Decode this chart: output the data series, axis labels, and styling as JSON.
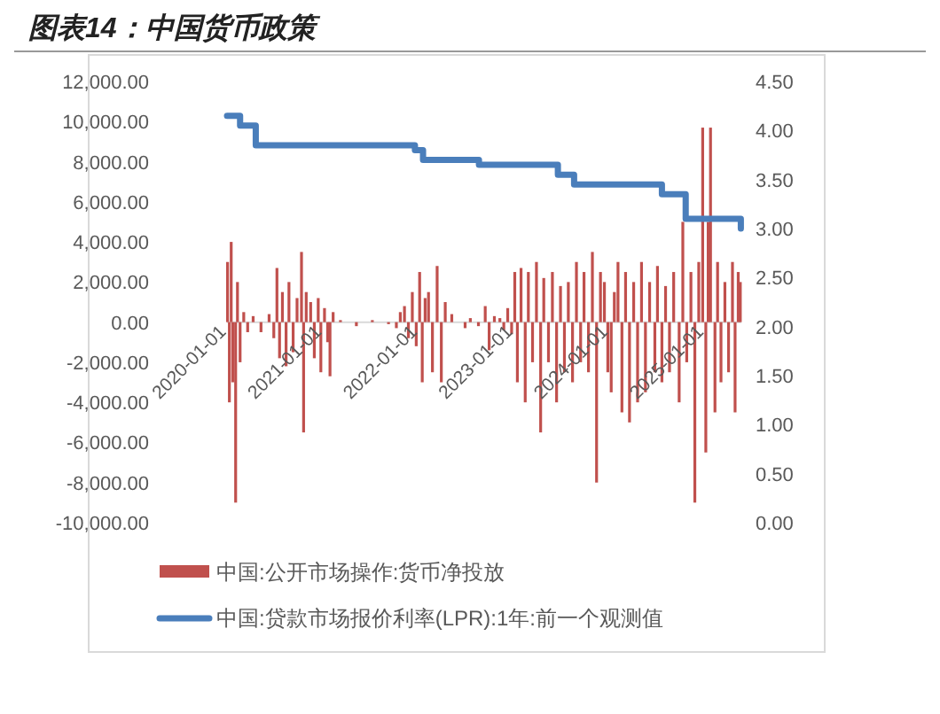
{
  "chart_data": {
    "type": "bar",
    "title": "图表14：中国货币政策",
    "xlim": [
      "2020-01-01",
      "2025-05-22"
    ],
    "xticks": [
      "2020-01-01",
      "2021-01-01",
      "2022-01-01",
      "2023-01-01",
      "2024-01-01",
      "2025-01-01"
    ],
    "ylim": [
      -10000,
      12000
    ],
    "yticks": [
      {
        "value": -10000,
        "label": "-10,000.00"
      },
      {
        "value": -8000,
        "label": "-8,000.00"
      },
      {
        "value": -6000,
        "label": "-6,000.00"
      },
      {
        "value": -4000,
        "label": "-4,000.00"
      },
      {
        "value": -2000,
        "label": "-2,000.00"
      },
      {
        "value": 0,
        "label": "0.00"
      },
      {
        "value": 2000,
        "label": "2,000.00"
      },
      {
        "value": 4000,
        "label": "4,000.00"
      },
      {
        "value": 6000,
        "label": "6,000.00"
      },
      {
        "value": 8000,
        "label": "8,000.00"
      },
      {
        "value": 10000,
        "label": "10,000.00"
      },
      {
        "value": 12000,
        "label": "12,000.00"
      }
    ],
    "y2lim": [
      0,
      4.5
    ],
    "y2ticks": [
      {
        "value": 0,
        "label": "0.00"
      },
      {
        "value": 0.5,
        "label": "0.50"
      },
      {
        "value": 1,
        "label": "1.00"
      },
      {
        "value": 1.5,
        "label": "1.50"
      },
      {
        "value": 2,
        "label": "2.00"
      },
      {
        "value": 2.5,
        "label": "2.50"
      },
      {
        "value": 3,
        "label": "3.00"
      },
      {
        "value": 3.5,
        "label": "3.50"
      },
      {
        "value": 4,
        "label": "4.00"
      },
      {
        "value": 4.5,
        "label": "4.50"
      }
    ],
    "legend": "bottom",
    "series": [
      {
        "name": "中国:公开市场操作:货币净投放",
        "color": "#c0504d",
        "x": [
          "2020-01-03",
          "2020-01-10",
          "2020-01-17",
          "2020-01-23",
          "2020-02-03",
          "2020-02-10",
          "2020-02-20",
          "2020-03-05",
          "2020-03-20",
          "2020-04-10",
          "2020-05-10",
          "2020-06-10",
          "2020-06-28",
          "2020-07-10",
          "2020-07-20",
          "2020-07-31",
          "2020-08-14",
          "2020-08-25",
          "2020-09-10",
          "2020-09-25",
          "2020-10-12",
          "2020-10-20",
          "2020-10-30",
          "2020-11-16",
          "2020-11-30",
          "2020-12-15",
          "2020-12-25",
          "2021-01-08",
          "2021-01-20",
          "2021-01-29",
          "2021-02-10",
          "2021-03-10",
          "2021-05-10",
          "2021-07-10",
          "2021-09-10",
          "2021-10-10",
          "2021-10-25",
          "2021-11-10",
          "2021-11-25",
          "2021-12-10",
          "2021-12-25",
          "2022-01-07",
          "2022-01-17",
          "2022-01-28",
          "2022-02-10",
          "2022-02-25",
          "2022-03-15",
          "2022-03-31",
          "2022-04-15",
          "2022-05-10",
          "2022-06-30",
          "2022-07-20",
          "2022-08-20",
          "2022-09-15",
          "2022-09-30",
          "2022-10-20",
          "2022-11-10",
          "2022-11-25",
          "2022-12-10",
          "2022-12-25",
          "2023-01-06",
          "2023-01-16",
          "2023-01-30",
          "2023-02-15",
          "2023-02-27",
          "2023-03-15",
          "2023-03-30",
          "2023-04-15",
          "2023-04-27",
          "2023-05-15",
          "2023-05-30",
          "2023-06-15",
          "2023-06-30",
          "2023-07-15",
          "2023-07-30",
          "2023-08-15",
          "2023-08-30",
          "2023-09-15",
          "2023-09-28",
          "2023-10-15",
          "2023-10-30",
          "2023-11-15",
          "2023-11-30",
          "2023-12-15",
          "2023-12-28",
          "2024-01-10",
          "2024-01-22",
          "2024-02-05",
          "2024-02-20",
          "2024-03-05",
          "2024-03-20",
          "2024-04-05",
          "2024-04-20",
          "2024-05-05",
          "2024-05-20",
          "2024-06-05",
          "2024-06-25",
          "2024-07-05",
          "2024-07-22",
          "2024-08-05",
          "2024-08-20",
          "2024-09-05",
          "2024-09-26",
          "2024-10-10",
          "2024-10-25",
          "2024-11-10",
          "2024-11-25",
          "2024-12-10",
          "2024-12-25",
          "2025-01-06",
          "2025-01-15",
          "2025-01-24",
          "2025-02-10",
          "2025-02-20",
          "2025-03-05",
          "2025-03-20",
          "2025-04-03",
          "2025-04-18",
          "2025-04-28",
          "2025-05-10",
          "2025-05-18"
        ],
        "values": [
          3000,
          -4000,
          4000,
          -3000,
          -9000,
          2000,
          -2000,
          500,
          -500,
          300,
          -500,
          400,
          -800,
          2700,
          -1800,
          1500,
          -2200,
          2000,
          -1500,
          1200,
          3500,
          -5500,
          1500,
          1000,
          -1800,
          1200,
          -2500,
          700,
          -1000,
          -2700,
          500,
          100,
          -200,
          100,
          -100,
          -300,
          500,
          800,
          -800,
          1500,
          -1200,
          2500,
          -3000,
          1200,
          1500,
          -2500,
          2800,
          -3000,
          1000,
          400,
          -300,
          200,
          -200,
          800,
          -1400,
          300,
          200,
          -400,
          700,
          -600,
          2500,
          -3000,
          2700,
          -4000,
          2500,
          -2000,
          3000,
          -5500,
          2200,
          -2000,
          2500,
          -4000,
          1800,
          -2500,
          2000,
          -3000,
          3000,
          -2000,
          2500,
          -2500,
          3500,
          -8000,
          2500,
          2000,
          -2500,
          -3500,
          1500,
          3000,
          -4500,
          2500,
          -5000,
          2000,
          -4000,
          3000,
          -3500,
          2000,
          -2500,
          2800,
          -3000,
          1800,
          -2500,
          2500,
          -4000,
          5000,
          -2000,
          2500,
          -9000,
          3000,
          9700,
          -6500,
          5000,
          9700,
          -4500,
          3000,
          -3000,
          2000,
          -2500,
          3000,
          -4500,
          2500,
          2000
        ]
      },
      {
        "name": "中国:贷款市场报价利率(LPR):1年:前一个观测值",
        "type": "step",
        "axis": "y2",
        "color": "#4a7ebb",
        "x": [
          "2020-01-01",
          "2020-02-20",
          "2020-04-20",
          "2021-12-20",
          "2022-01-20",
          "2022-08-22",
          "2023-06-20",
          "2023-08-21",
          "2024-07-22",
          "2024-10-21",
          "2025-05-20"
        ],
        "values": [
          4.15,
          4.05,
          3.85,
          3.8,
          3.7,
          3.65,
          3.55,
          3.45,
          3.35,
          3.1,
          3.0
        ]
      }
    ]
  }
}
